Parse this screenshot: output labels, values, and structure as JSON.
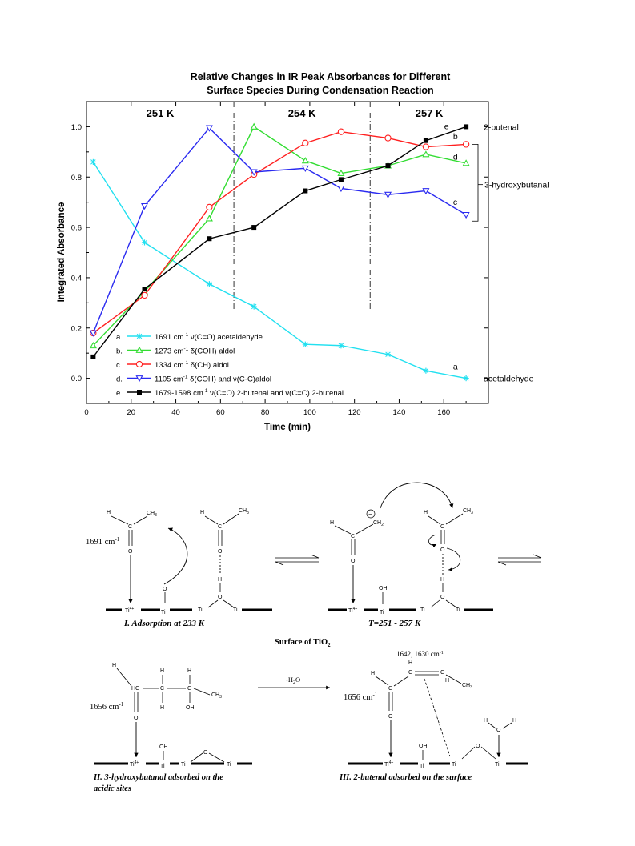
{
  "chart_data": {
    "type": "line",
    "title": "Relative Changes in IR Peak Absorbances for Different",
    "subtitle": "Surface Species During Condensation Reaction",
    "xlabel": "Time (min)",
    "ylabel": "Integrated Absorbance",
    "xlim": [
      0,
      180
    ],
    "ylim": [
      -0.1,
      1.1
    ],
    "xticks": [
      "0",
      "20",
      "40",
      "60",
      "80",
      "100",
      "120",
      "140",
      "160"
    ],
    "yticks": [
      "0.0",
      "0.2",
      "0.4",
      "0.6",
      "0.8",
      "1.0"
    ],
    "grid": false,
    "legend_position": "bottom-left",
    "temperature_regions": [
      {
        "label": "251 K",
        "x_start": 0,
        "x_end": 66
      },
      {
        "label": "254 K",
        "x_start": 66,
        "x_end": 127
      },
      {
        "label": "257 K",
        "x_start": 127,
        "x_end": 180
      }
    ],
    "boundaries": [
      66,
      127
    ],
    "series": [
      {
        "key": "a",
        "prefix": "a.",
        "base": "1691 cm",
        "rest": " ν(C=O) acetaldehyde",
        "color": "#22e0f0",
        "marker": "star",
        "end_label": "a",
        "x": [
          3,
          26,
          55,
          75,
          98,
          114,
          135,
          152,
          170
        ],
        "y": [
          0.86,
          0.54,
          0.375,
          0.285,
          0.135,
          0.13,
          0.095,
          0.03,
          0.0
        ]
      },
      {
        "key": "b",
        "prefix": "b.",
        "base": "1273 cm",
        "rest": " δ(COH) aldol",
        "color": "#33dd33",
        "marker": "triangle-up",
        "end_label": "c",
        "x": [
          3,
          26,
          55,
          75,
          98,
          114,
          135,
          152,
          170
        ],
        "y": [
          0.13,
          0.345,
          0.635,
          1.0,
          0.865,
          0.815,
          0.845,
          0.89,
          0.855
        ]
      },
      {
        "key": "c",
        "prefix": "c.",
        "base": "1334 cm",
        "rest": " δ(CH) aldol",
        "color": "#ff2020",
        "marker": "circle",
        "end_label": "d",
        "x": [
          3,
          26,
          55,
          75,
          98,
          114,
          135,
          152,
          170
        ],
        "y": [
          0.18,
          0.33,
          0.68,
          0.81,
          0.935,
          0.98,
          0.955,
          0.92,
          0.93
        ]
      },
      {
        "key": "d",
        "prefix": "d.",
        "base": "1105 cm",
        "rest": " δ(COH) and ν(C-C)aldol",
        "color": "#2a2af0",
        "marker": "triangle-down",
        "end_label": "b",
        "x": [
          3,
          26,
          55,
          75,
          98,
          114,
          135,
          152,
          170
        ],
        "y": [
          0.18,
          0.685,
          0.995,
          0.82,
          0.835,
          0.755,
          0.73,
          0.745,
          0.65
        ]
      },
      {
        "key": "e",
        "prefix": "e.",
        "base": "1679-1598 cm",
        "rest": " ν(C=O) 2-butenal and ν(C=C) 2-butenal",
        "color": "#000000",
        "marker": "square",
        "end_label": "e",
        "x": [
          3,
          26,
          55,
          75,
          98,
          114,
          135,
          152,
          170
        ],
        "y": [
          0.085,
          0.355,
          0.555,
          0.6,
          0.745,
          0.79,
          0.845,
          0.945,
          1.0
        ]
      }
    ],
    "superscript": "-1",
    "right_labels": {
      "top": "2-butenal",
      "middle": "3-hydroxybutanal",
      "bottom": "acetaldehyde"
    }
  },
  "scheme": {
    "labels": {
      "freq_1691": "1691 cm",
      "freq_1656a": "1656 cm",
      "freq_1656b": "1656 cm",
      "freq_1642": "1642, 1630 cm",
      "sup": "-1",
      "water_loss": "-H",
      "water_sub": "2",
      "water_o": "O",
      "surface": "Surface of TiO",
      "surface_sub": "2",
      "step1": "I. Adsorption at 233 K",
      "step_t": "T=251 - 257 K",
      "step2_a": "II. 3-hydroxybutanal adsorbed on the",
      "step2_b": "acidic sites",
      "step3": "III. 2-butenal adsorbed on the surface"
    },
    "atoms": {
      "H": "H",
      "C": "C",
      "O": "O",
      "CH3": "CH",
      "CH2": "CH",
      "HC": "HC",
      "OH": "OH",
      "Ti": "Ti",
      "Ti4": "Ti",
      "four_plus": "4+",
      "minus": "−",
      "three": "3",
      "two": "2"
    }
  }
}
